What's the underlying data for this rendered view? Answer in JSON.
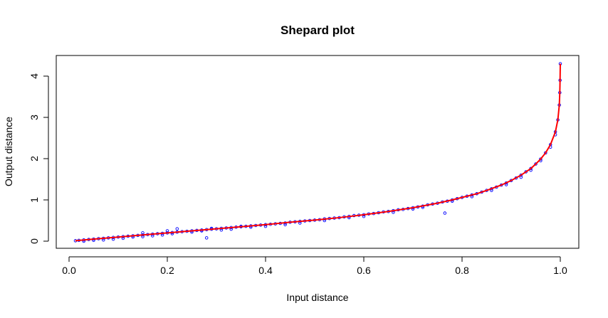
{
  "chart_data": {
    "type": "scatter",
    "title": "Shepard plot",
    "xlabel": "Input distance",
    "ylabel": "Output distance",
    "xlim": [
      0.0,
      1.0
    ],
    "ylim": [
      0,
      4.3
    ],
    "x_ticks": [
      "0.0",
      "0.2",
      "0.4",
      "0.6",
      "0.8",
      "1.0"
    ],
    "y_ticks": [
      "0",
      "1",
      "2",
      "3",
      "4"
    ],
    "grid": false,
    "colors": {
      "points": "#0000ff",
      "fit_line": "#ff0000",
      "background": "#ffffff",
      "frame": "#000000"
    },
    "series": [
      {
        "kind": "points",
        "marker": "open-circle",
        "points": [
          [
            0.013,
            0.01
          ],
          [
            0.02,
            0.02
          ],
          [
            0.03,
            0.03
          ],
          [
            0.04,
            0.04
          ],
          [
            0.05,
            0.05
          ],
          [
            0.06,
            0.06
          ],
          [
            0.07,
            0.07
          ],
          [
            0.08,
            0.08
          ],
          [
            0.09,
            0.09
          ],
          [
            0.1,
            0.1
          ],
          [
            0.11,
            0.11
          ],
          [
            0.12,
            0.12
          ],
          [
            0.13,
            0.13
          ],
          [
            0.14,
            0.14
          ],
          [
            0.15,
            0.15
          ],
          [
            0.16,
            0.16
          ],
          [
            0.17,
            0.17
          ],
          [
            0.18,
            0.18
          ],
          [
            0.19,
            0.19
          ],
          [
            0.2,
            0.2
          ],
          [
            0.21,
            0.21
          ],
          [
            0.22,
            0.22
          ],
          [
            0.23,
            0.23
          ],
          [
            0.24,
            0.24
          ],
          [
            0.25,
            0.25
          ],
          [
            0.26,
            0.26
          ],
          [
            0.27,
            0.27
          ],
          [
            0.28,
            0.28
          ],
          [
            0.29,
            0.29
          ],
          [
            0.3,
            0.3
          ],
          [
            0.31,
            0.31
          ],
          [
            0.32,
            0.32
          ],
          [
            0.33,
            0.33
          ],
          [
            0.34,
            0.34
          ],
          [
            0.35,
            0.35
          ],
          [
            0.36,
            0.36
          ],
          [
            0.37,
            0.37
          ],
          [
            0.38,
            0.38
          ],
          [
            0.39,
            0.39
          ],
          [
            0.4,
            0.4
          ],
          [
            0.41,
            0.41
          ],
          [
            0.42,
            0.42
          ],
          [
            0.43,
            0.43
          ],
          [
            0.44,
            0.44
          ],
          [
            0.45,
            0.46
          ],
          [
            0.46,
            0.47
          ],
          [
            0.47,
            0.48
          ],
          [
            0.48,
            0.49
          ],
          [
            0.49,
            0.5
          ],
          [
            0.5,
            0.51
          ],
          [
            0.51,
            0.52
          ],
          [
            0.52,
            0.54
          ],
          [
            0.53,
            0.55
          ],
          [
            0.54,
            0.56
          ],
          [
            0.55,
            0.57
          ],
          [
            0.56,
            0.59
          ],
          [
            0.57,
            0.6
          ],
          [
            0.58,
            0.62
          ],
          [
            0.59,
            0.63
          ],
          [
            0.6,
            0.64
          ],
          [
            0.61,
            0.66
          ],
          [
            0.62,
            0.67
          ],
          [
            0.63,
            0.69
          ],
          [
            0.64,
            0.71
          ],
          [
            0.65,
            0.72
          ],
          [
            0.66,
            0.74
          ],
          [
            0.67,
            0.76
          ],
          [
            0.68,
            0.77
          ],
          [
            0.69,
            0.79
          ],
          [
            0.7,
            0.81
          ],
          [
            0.71,
            0.83
          ],
          [
            0.72,
            0.85
          ],
          [
            0.73,
            0.88
          ],
          [
            0.74,
            0.9
          ],
          [
            0.75,
            0.92
          ],
          [
            0.76,
            0.95
          ],
          [
            0.77,
            0.97
          ],
          [
            0.78,
            1.0
          ],
          [
            0.79,
            1.03
          ],
          [
            0.8,
            1.06
          ],
          [
            0.81,
            1.09
          ],
          [
            0.82,
            1.12
          ],
          [
            0.83,
            1.15
          ],
          [
            0.84,
            1.19
          ],
          [
            0.85,
            1.23
          ],
          [
            0.86,
            1.27
          ],
          [
            0.87,
            1.31
          ],
          [
            0.88,
            1.36
          ],
          [
            0.89,
            1.41
          ],
          [
            0.9,
            1.47
          ],
          [
            0.91,
            1.53
          ],
          [
            0.92,
            1.6
          ],
          [
            0.93,
            1.68
          ],
          [
            0.94,
            1.76
          ],
          [
            0.95,
            1.87
          ],
          [
            0.96,
            1.99
          ],
          [
            0.97,
            2.14
          ],
          [
            0.98,
            2.34
          ],
          [
            0.99,
            2.65
          ],
          [
            0.995,
            2.94
          ],
          [
            0.998,
            3.3
          ],
          [
            0.999,
            3.6
          ],
          [
            0.9995,
            3.9
          ],
          [
            1.0,
            4.3
          ],
          [
            0.03,
            0.0
          ],
          [
            0.05,
            0.02
          ],
          [
            0.07,
            0.03
          ],
          [
            0.09,
            0.05
          ],
          [
            0.11,
            0.07
          ],
          [
            0.13,
            0.1
          ],
          [
            0.15,
            0.11
          ],
          [
            0.17,
            0.13
          ],
          [
            0.19,
            0.15
          ],
          [
            0.21,
            0.18
          ],
          [
            0.15,
            0.2
          ],
          [
            0.2,
            0.25
          ],
          [
            0.22,
            0.3
          ],
          [
            0.25,
            0.22
          ],
          [
            0.27,
            0.25
          ],
          [
            0.29,
            0.31
          ],
          [
            0.31,
            0.27
          ],
          [
            0.28,
            0.08
          ],
          [
            0.33,
            0.29
          ],
          [
            0.35,
            0.36
          ],
          [
            0.37,
            0.34
          ],
          [
            0.4,
            0.36
          ],
          [
            0.44,
            0.4
          ],
          [
            0.47,
            0.44
          ],
          [
            0.52,
            0.5
          ],
          [
            0.57,
            0.57
          ],
          [
            0.6,
            0.6
          ],
          [
            0.66,
            0.7
          ],
          [
            0.7,
            0.78
          ],
          [
            0.72,
            0.82
          ],
          [
            0.765,
            0.68
          ],
          [
            0.78,
            0.97
          ],
          [
            0.82,
            1.08
          ],
          [
            0.86,
            1.23
          ],
          [
            0.89,
            1.37
          ],
          [
            0.92,
            1.55
          ],
          [
            0.94,
            1.72
          ],
          [
            0.96,
            1.95
          ],
          [
            0.98,
            2.28
          ],
          [
            0.99,
            2.58
          ]
        ]
      },
      {
        "kind": "fit-line",
        "points": [
          [
            0.013,
            0.01
          ],
          [
            0.05,
            0.05
          ],
          [
            0.1,
            0.1
          ],
          [
            0.15,
            0.15
          ],
          [
            0.2,
            0.2
          ],
          [
            0.25,
            0.25
          ],
          [
            0.3,
            0.3
          ],
          [
            0.35,
            0.35
          ],
          [
            0.4,
            0.4
          ],
          [
            0.45,
            0.46
          ],
          [
            0.5,
            0.51
          ],
          [
            0.55,
            0.57
          ],
          [
            0.6,
            0.64
          ],
          [
            0.65,
            0.72
          ],
          [
            0.7,
            0.81
          ],
          [
            0.75,
            0.92
          ],
          [
            0.78,
            1.0
          ],
          [
            0.8,
            1.06
          ],
          [
            0.83,
            1.15
          ],
          [
            0.85,
            1.23
          ],
          [
            0.88,
            1.36
          ],
          [
            0.9,
            1.47
          ],
          [
            0.92,
            1.6
          ],
          [
            0.94,
            1.76
          ],
          [
            0.95,
            1.87
          ],
          [
            0.96,
            1.99
          ],
          [
            0.97,
            2.14
          ],
          [
            0.98,
            2.34
          ],
          [
            0.99,
            2.65
          ],
          [
            0.995,
            2.94
          ],
          [
            0.998,
            3.3
          ],
          [
            0.999,
            3.6
          ],
          [
            0.9995,
            3.9
          ],
          [
            1.0,
            4.3
          ]
        ]
      }
    ]
  }
}
